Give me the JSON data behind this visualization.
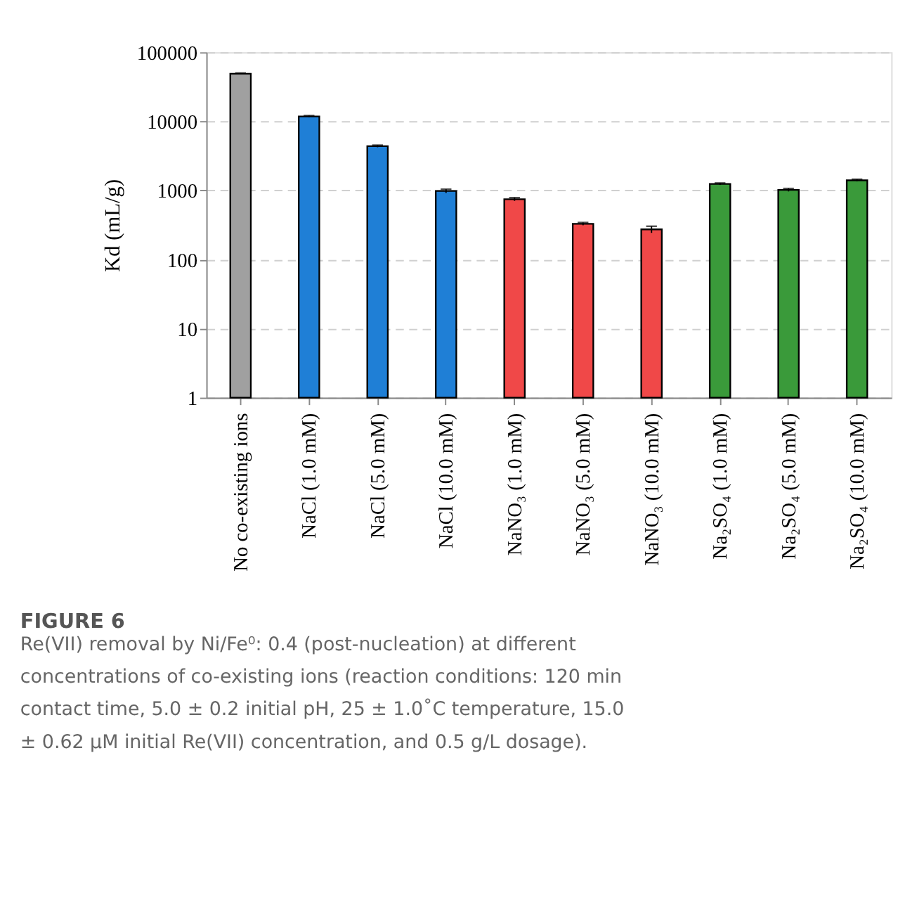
{
  "chart_data": {
    "type": "bar",
    "title": "FIGURE 6",
    "subtitle": "Re(VII) removal by Ni/Fe⁰: 0.4 (post-nucleation) at different concentrations of co-existing ions (reaction conditions: 120 min contact time, 5.0 ± 0.2 initial pH, 25 ± 1.0˚C temperature, 15.0 ± 0.62 μM initial Re(VII) concentration, and 0.5 g/L dosage).",
    "ylabel": "Kd (mL/g)",
    "categories": [
      "No co-existing ions",
      "NaCl (1.0 mM)",
      "NaCl (5.0 mM)",
      "NaCl (10.0 mM)",
      "NaNO₃ (1.0 mM)",
      "NaNO₃ (5.0 mM)",
      "NaNO₃ (10.0 mM)",
      "Na₂SO₄ (1.0 mM)",
      "Na₂SO₄ (5.0 mM)",
      "Na₂SO₄ (10.0 mM)"
    ],
    "values": [
      49000,
      11800,
      4370,
      980,
      746,
      328,
      273,
      1240,
      1017,
      1400
    ],
    "errors": [
      1000,
      300,
      150,
      60,
      40,
      15,
      30,
      40,
      50,
      50
    ],
    "colors": [
      "#a0a0a0",
      "#1f7fd6",
      "#1f7fd6",
      "#1f7fd6",
      "#f04848",
      "#f04848",
      "#f04848",
      "#3a9a3a",
      "#3a9a3a",
      "#3a9a3a"
    ],
    "ylim": [
      1,
      100000
    ],
    "yticks": [
      1,
      10,
      100,
      1000,
      10000,
      100000
    ],
    "log": true,
    "grid": "y"
  }
}
